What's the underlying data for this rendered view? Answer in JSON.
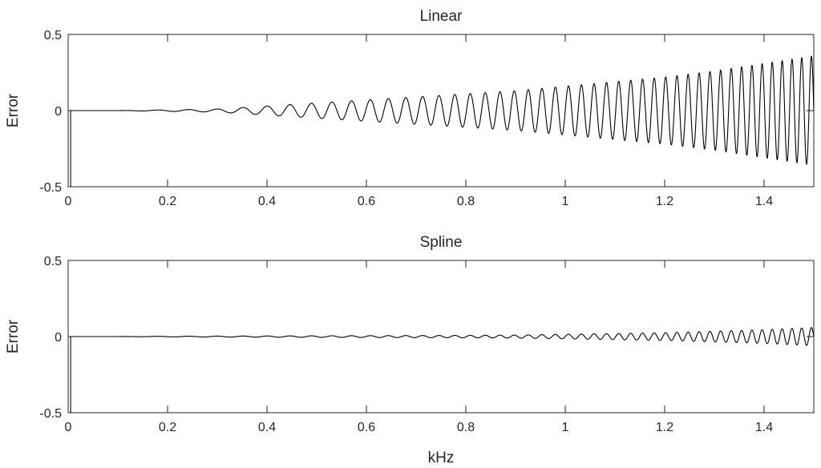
{
  "chart_data": [
    {
      "type": "line",
      "title": "Linear",
      "xlabel": "",
      "ylabel": "Error",
      "xlim": [
        0,
        1.5
      ],
      "ylim": [
        -0.5,
        0.5
      ],
      "xticks": [
        "0",
        "0.2",
        "0.4",
        "0.6",
        "0.8",
        "1",
        "1.2",
        "1.4"
      ],
      "yticks": [
        "-0.5",
        "0",
        "0.5"
      ],
      "grid": false,
      "series": [
        {
          "line_color": "#000000",
          "description_of_trend": "error oscillation amplitude grows with frequency",
          "envelope": {
            "x": [
              0,
              0.1,
              0.2,
              0.3,
              0.4,
              0.5,
              0.6,
              0.7,
              0.8,
              0.9,
              1.0,
              1.1,
              1.2,
              1.3,
              1.4,
              1.5
            ],
            "amplitude": [
              0.0,
              0.0,
              0.005,
              0.01,
              0.03,
              0.05,
              0.07,
              0.09,
              0.11,
              0.13,
              0.16,
              0.19,
              0.22,
              0.26,
              0.31,
              0.36
            ]
          },
          "initial_spike": {
            "x": 0.005,
            "y": -0.5
          }
        }
      ]
    },
    {
      "type": "line",
      "title": "Spline",
      "xlabel": "kHz",
      "ylabel": "Error",
      "xlim": [
        0,
        1.5
      ],
      "ylim": [
        -0.5,
        0.5
      ],
      "xticks": [
        "0",
        "0.2",
        "0.4",
        "0.6",
        "0.8",
        "1",
        "1.2",
        "1.4"
      ],
      "yticks": [
        "-0.5",
        "0",
        "0.5"
      ],
      "grid": false,
      "series": [
        {
          "line_color": "#000000",
          "envelope": {
            "x": [
              0,
              0.1,
              0.2,
              0.3,
              0.4,
              0.5,
              0.6,
              0.7,
              0.8,
              0.9,
              1.0,
              1.1,
              1.2,
              1.3,
              1.4,
              1.5
            ],
            "amplitude": [
              0.0,
              0.0,
              0.002,
              0.003,
              0.004,
              0.005,
              0.006,
              0.007,
              0.008,
              0.01,
              0.015,
              0.02,
              0.025,
              0.035,
              0.045,
              0.06
            ]
          },
          "initial_spike": {
            "x": 0.005,
            "y": -0.5
          }
        }
      ]
    }
  ]
}
